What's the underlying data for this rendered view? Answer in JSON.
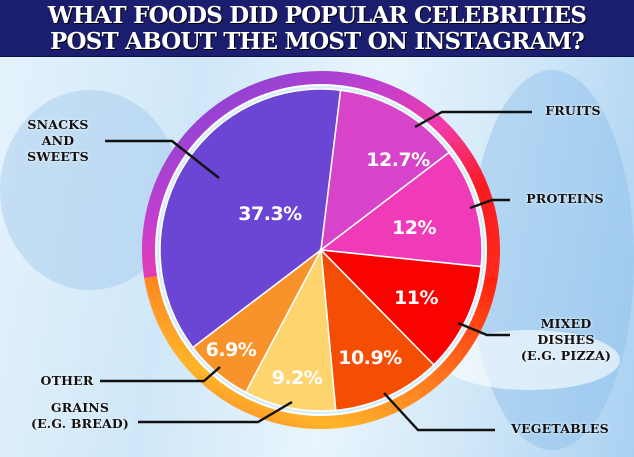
{
  "header": {
    "title_line1": "WHAT FOODS DID POPULAR CELEBRITIES",
    "title_line2": "POST ABOUT THE MOST ON INSTAGRAM?"
  },
  "chart_data": {
    "type": "pie",
    "title": "WHAT FOODS DID POPULAR CELEBRITIES POST ABOUT THE MOST ON INSTAGRAM?",
    "slices": [
      {
        "label": "SNACKS AND SWEETS",
        "label_lines": [
          "SNACKS",
          "AND",
          "SWEETS"
        ],
        "value": 37.3,
        "value_label": "37.3%",
        "color": "#6b45d4"
      },
      {
        "label": "FRUITS",
        "label_lines": [
          "FRUITS"
        ],
        "value": 12.7,
        "value_label": "12.7%",
        "color": "#d844c9"
      },
      {
        "label": "PROTEINS",
        "label_lines": [
          "PROTEINS"
        ],
        "value": 12,
        "value_label": "12%",
        "color": "#ef3bb8"
      },
      {
        "label": "MIXED DISHES (E.G. PIZZA)",
        "label_lines": [
          "MIXED",
          "DISHES",
          "(E.G. PIZZA)"
        ],
        "value": 11,
        "value_label": "11%",
        "color": "#f90302"
      },
      {
        "label": "VEGETABLES",
        "label_lines": [
          "VEGETABLES"
        ],
        "value": 10.9,
        "value_label": "10.9%",
        "color": "#f44e05"
      },
      {
        "label": "GRAINS (E.G. BREAD)",
        "label_lines": [
          "GRAINS",
          "(E.G. BREAD)"
        ],
        "value": 9.2,
        "value_label": "9.2%",
        "color": "#fdd46e"
      },
      {
        "label": "OTHER",
        "label_lines": [
          "OTHER"
        ],
        "value": 6.9,
        "value_label": "6.9%",
        "color": "#f8922a"
      }
    ],
    "start_angle_deg": 7,
    "direction": "clockwise",
    "legend": "callout-labels"
  }
}
